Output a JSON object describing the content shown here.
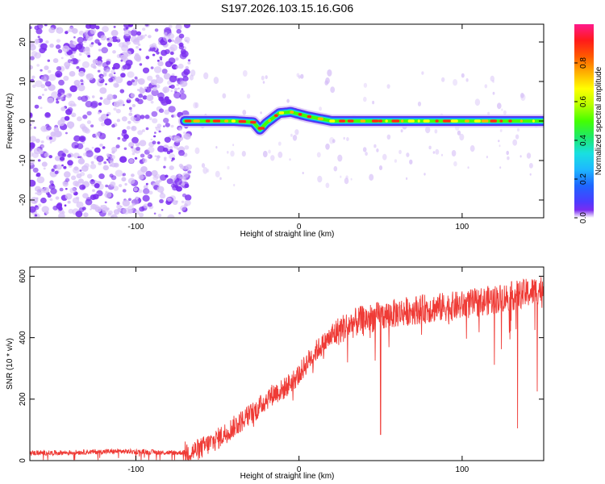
{
  "figure_title": "S197.2026.103.15.16.G06",
  "colors": {
    "snr_line": "#ef3b36",
    "frame": "#000000",
    "scatter_purple": "#7a2cf0",
    "scatter_light": "#d6bff7"
  },
  "colormap_stops": [
    "#7a2cf0",
    "#4b3cff",
    "#1e66ff",
    "#1eb8ff",
    "#19e0e0",
    "#1ee86a",
    "#44ff00",
    "#b8ff00",
    "#ffff00",
    "#ffb000",
    "#ff5a00",
    "#ff1a1a",
    "#ff1a8c"
  ],
  "chart_data": [
    {
      "type": "heatmap",
      "title": "S197.2026.103.15.16.G06",
      "xlabel": "Height of straight line (km)",
      "ylabel": "Frequency (Hz)",
      "xlim": [
        -165,
        150
      ],
      "ylim": [
        -24.5,
        24.5
      ],
      "x_ticks": [
        -100,
        0,
        100
      ],
      "x_tick_labels": [
        "-100",
        "0",
        "100"
      ],
      "y_ticks": [
        20,
        10,
        0,
        -10,
        -20
      ],
      "y_tick_labels": [
        "20",
        "10",
        "0",
        "-10",
        "-20"
      ],
      "noise_region_end_km": -70,
      "ridge_path": [
        {
          "x": -70,
          "y": 0
        },
        {
          "x": -40,
          "y": 0
        },
        {
          "x": -28,
          "y": -0.3
        },
        {
          "x": -24,
          "y": -2.2
        },
        {
          "x": -20,
          "y": -0.5
        },
        {
          "x": -12,
          "y": 2.0
        },
        {
          "x": -5,
          "y": 2.3
        },
        {
          "x": 5,
          "y": 1.2
        },
        {
          "x": 20,
          "y": 0
        },
        {
          "x": 60,
          "y": 0
        },
        {
          "x": 100,
          "y": 0
        },
        {
          "x": 150,
          "y": 0
        }
      ],
      "colorbar": {
        "label": "Normalized spectral amplitude",
        "range": [
          0.0,
          1.0
        ],
        "ticks": [
          0.0,
          0.2,
          0.4,
          0.6,
          0.8
        ],
        "tick_labels": [
          "0.0",
          "0.2",
          "0.4",
          "0.6",
          "0.8"
        ]
      }
    },
    {
      "type": "line",
      "xlabel": "Height of straight line (km)",
      "ylabel": "SNR (10 * v/v)",
      "xlim": [
        -165,
        150
      ],
      "ylim": [
        0,
        630
      ],
      "x_ticks": [
        -100,
        0,
        100
      ],
      "x_tick_labels": [
        "-100",
        "0",
        "100"
      ],
      "y_ticks": [
        0,
        200,
        400,
        600
      ],
      "y_tick_labels": [
        "0",
        "200",
        "400",
        "600"
      ],
      "series": [
        {
          "name": "SNR",
          "x": [
            -165,
            -150,
            -130,
            -110,
            -90,
            -75,
            -65,
            -60,
            -55,
            -50,
            -45,
            -40,
            -35,
            -30,
            -25,
            -20,
            -15,
            -10,
            -5,
            0,
            5,
            10,
            15,
            20,
            25,
            30,
            40,
            50,
            60,
            70,
            80,
            90,
            100,
            110,
            120,
            130,
            140,
            150
          ],
          "values": [
            25,
            25,
            28,
            30,
            28,
            25,
            30,
            40,
            55,
            70,
            90,
            110,
            130,
            150,
            170,
            200,
            220,
            230,
            255,
            280,
            320,
            355,
            380,
            405,
            425,
            440,
            460,
            470,
            480,
            490,
            495,
            500,
            505,
            515,
            525,
            535,
            545,
            560
          ]
        }
      ],
      "dips": [
        {
          "x": 50,
          "y": 85
        },
        {
          "x": 134,
          "y": 105
        },
        {
          "x": 146,
          "y": 225
        }
      ]
    }
  ]
}
